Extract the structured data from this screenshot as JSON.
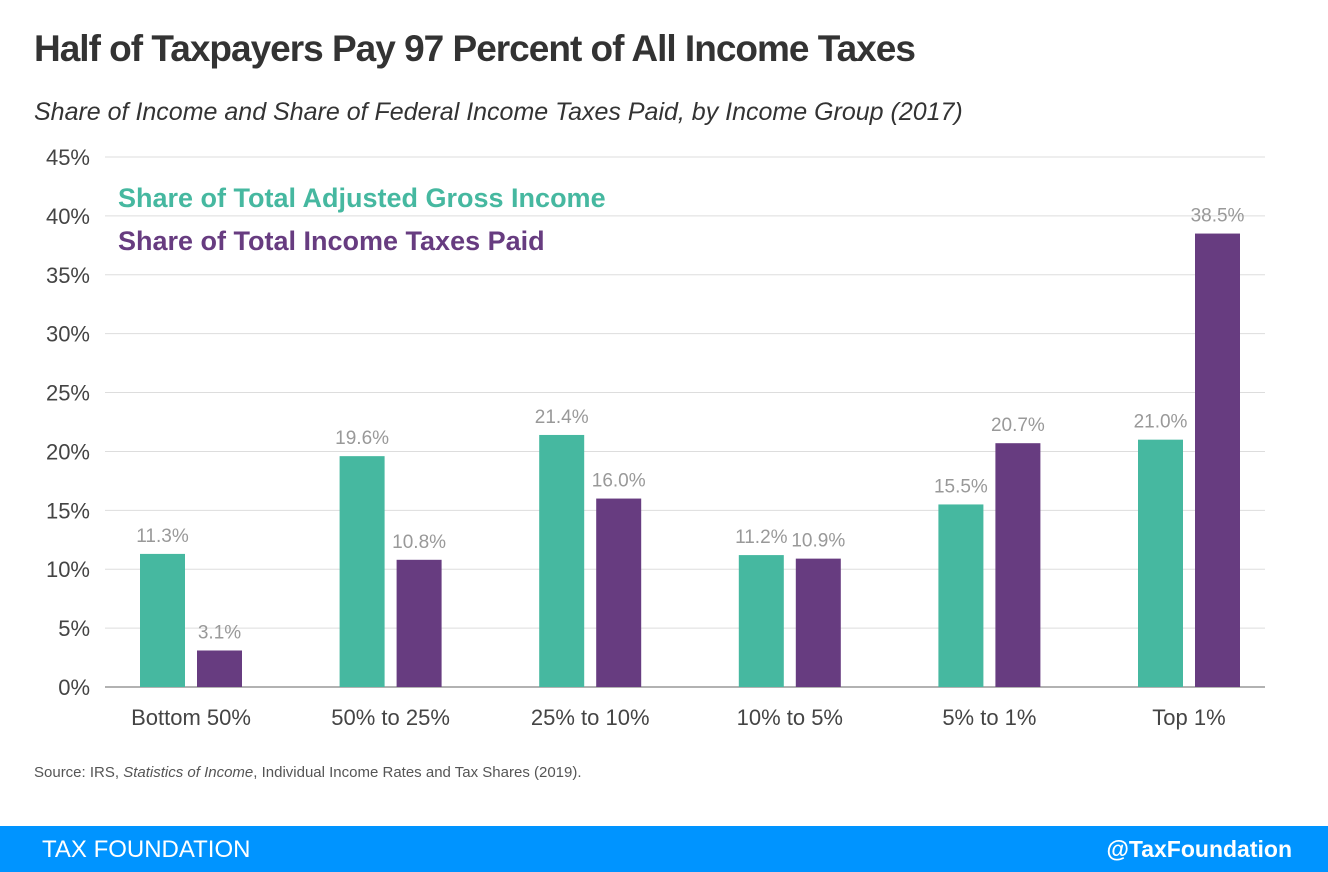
{
  "header": {
    "title": "Half of Taxpayers Pay 97 Percent of All Income Taxes",
    "subtitle": "Share of Income and Share of Federal Income Taxes Paid, by Income Group (2017)"
  },
  "chart_data": {
    "type": "bar",
    "title": "Half of Taxpayers Pay 97 Percent of All Income Taxes",
    "subtitle": "Share of Income and Share of Federal Income Taxes Paid, by Income Group (2017)",
    "categories": [
      "Bottom 50%",
      "50% to 25%",
      "25% to 10%",
      "10% to 5%",
      "5% to 1%",
      "Top 1%"
    ],
    "series": [
      {
        "name": "Share of Total Adjusted Gross Income",
        "color": "#46b8a0",
        "values": [
          11.3,
          19.6,
          21.4,
          11.2,
          15.5,
          21.0
        ],
        "labels": [
          "11.3%",
          "19.6%",
          "21.4%",
          "11.2%",
          "15.5%",
          "21.0%"
        ]
      },
      {
        "name": "Share of Total Income Taxes Paid",
        "color": "#673c80",
        "values": [
          3.1,
          10.8,
          16.0,
          10.9,
          20.7,
          38.5
        ],
        "labels": [
          "3.1%",
          "10.8%",
          "16.0%",
          "10.9%",
          "20.7%",
          "38.5%"
        ]
      }
    ],
    "ylim": [
      0,
      45
    ],
    "yticks": [
      "0%",
      "5%",
      "10%",
      "15%",
      "20%",
      "25%",
      "30%",
      "35%",
      "40%",
      "45%"
    ],
    "xlabel": "",
    "ylabel": "",
    "grid": true,
    "legend": "top-left"
  },
  "source": {
    "prefix": "Source: IRS, ",
    "italic": "Statistics of Income",
    "suffix": ", Individual Income Rates and Tax Shares (2019)."
  },
  "footer": {
    "brand": "TAX FOUNDATION",
    "handle": "@TaxFoundation",
    "color": "#0094ff"
  }
}
